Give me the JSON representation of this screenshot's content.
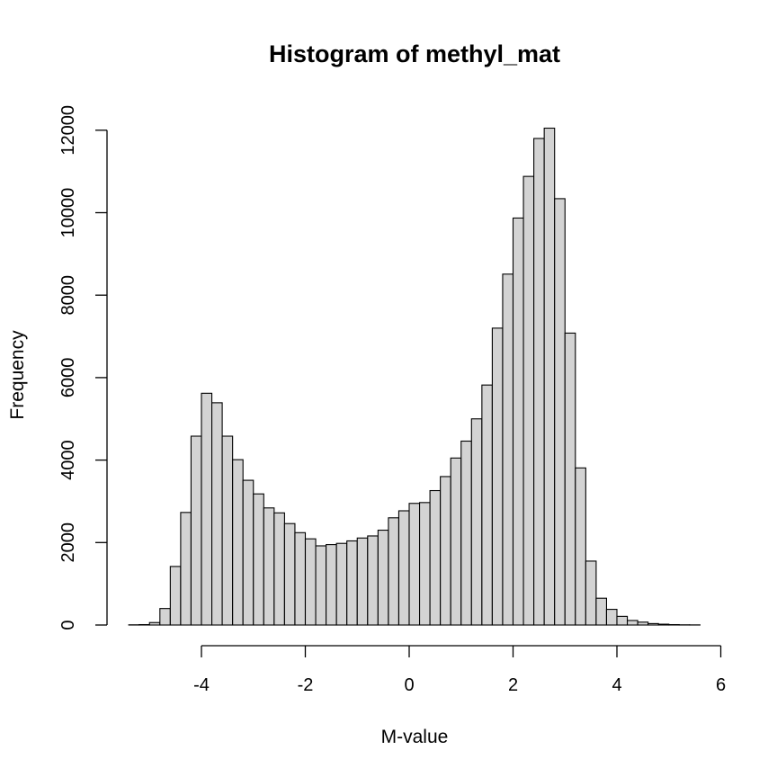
{
  "chart_data": {
    "type": "bar",
    "title": "Histogram of methyl_mat",
    "xlabel": "M-value",
    "ylabel": "Frequency",
    "bar_color": "#d3d3d3",
    "edge_color": "#000000",
    "xlim": [
      -5.4,
      5.8
    ],
    "ylim": [
      0,
      12050
    ],
    "x_ticks": [
      -4,
      -2,
      0,
      2,
      4,
      6
    ],
    "x_tick_labels": [
      "-4",
      "-2",
      "0",
      "2",
      "4",
      "6"
    ],
    "y_ticks": [
      0,
      2000,
      4000,
      6000,
      8000,
      10000,
      12000
    ],
    "y_tick_labels": [
      "0",
      "2000",
      "4000",
      "6000",
      "8000",
      "10000",
      "12000"
    ],
    "bin_width": 0.2,
    "bins_start": [
      -5.4,
      -5.2,
      -5.0,
      -4.8,
      -4.6,
      -4.4,
      -4.2,
      -4.0,
      -3.8,
      -3.6,
      -3.4,
      -3.2,
      -3.0,
      -2.8,
      -2.6,
      -2.4,
      -2.2,
      -2.0,
      -1.8,
      -1.6,
      -1.4,
      -1.2,
      -1.0,
      -0.8,
      -0.6,
      -0.4,
      -0.2,
      0.0,
      0.2,
      0.4,
      0.6,
      0.8,
      1.0,
      1.2,
      1.4,
      1.6,
      1.8,
      2.0,
      2.2,
      2.4,
      2.6,
      2.8,
      3.0,
      3.2,
      3.4,
      3.6,
      3.8,
      4.0,
      4.2,
      4.4,
      4.6,
      4.8,
      5.0,
      5.2,
      5.4
    ],
    "values": [
      5,
      10,
      60,
      400,
      1420,
      2730,
      4580,
      5620,
      5390,
      4580,
      4010,
      3510,
      3180,
      2840,
      2720,
      2460,
      2240,
      2090,
      1920,
      1950,
      1980,
      2040,
      2110,
      2160,
      2300,
      2600,
      2770,
      2950,
      2970,
      3260,
      3600,
      4050,
      4460,
      5000,
      5820,
      7200,
      8510,
      9870,
      10880,
      11800,
      12050,
      10340,
      7080,
      3810,
      1550,
      650,
      380,
      210,
      110,
      70,
      35,
      20,
      10,
      5,
      3
    ]
  }
}
